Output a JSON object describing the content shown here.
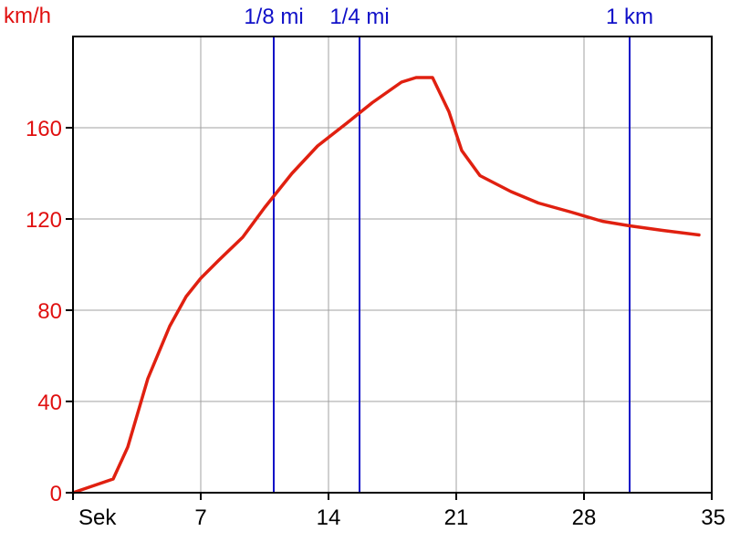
{
  "chart_data": {
    "type": "line",
    "title": "",
    "xlabel": "Sek",
    "ylabel": "km/h",
    "xlim": [
      0,
      35
    ],
    "ylim": [
      0,
      200
    ],
    "x_ticks": [
      0,
      7,
      14,
      21,
      28,
      35
    ],
    "x_tick_labels": [
      "Sek",
      "7",
      "14",
      "21",
      "28",
      "35"
    ],
    "y_ticks": [
      0,
      40,
      80,
      120,
      160
    ],
    "y_tick_labels": [
      "0",
      "40",
      "80",
      "120",
      "160"
    ],
    "grid": true,
    "legend": "none",
    "series": [
      {
        "color": "#e02010",
        "x": [
          0,
          2.2,
          3,
          4.1,
          5.3,
          6.2,
          7,
          8,
          9.3,
          10.5,
          12,
          13.4,
          15,
          16.4,
          18,
          18.8,
          19.7,
          20.6,
          21.3,
          22.3,
          24,
          25.5,
          27.3,
          29,
          30.5,
          32.3,
          34.3
        ],
        "y": [
          0,
          6,
          20,
          50,
          73,
          86,
          94,
          102,
          112,
          125,
          140,
          152,
          162,
          171,
          180,
          182,
          182,
          167,
          150,
          139,
          132,
          127,
          123,
          119,
          117,
          115,
          113
        ]
      }
    ],
    "markers": [
      {
        "label": "1/8 mi",
        "x": 11,
        "color": "#1010c8"
      },
      {
        "label": "1/4 mi",
        "x": 15.7,
        "color": "#1010c8"
      },
      {
        "label": "1 km",
        "x": 30.5,
        "color": "#1010c8"
      }
    ]
  }
}
